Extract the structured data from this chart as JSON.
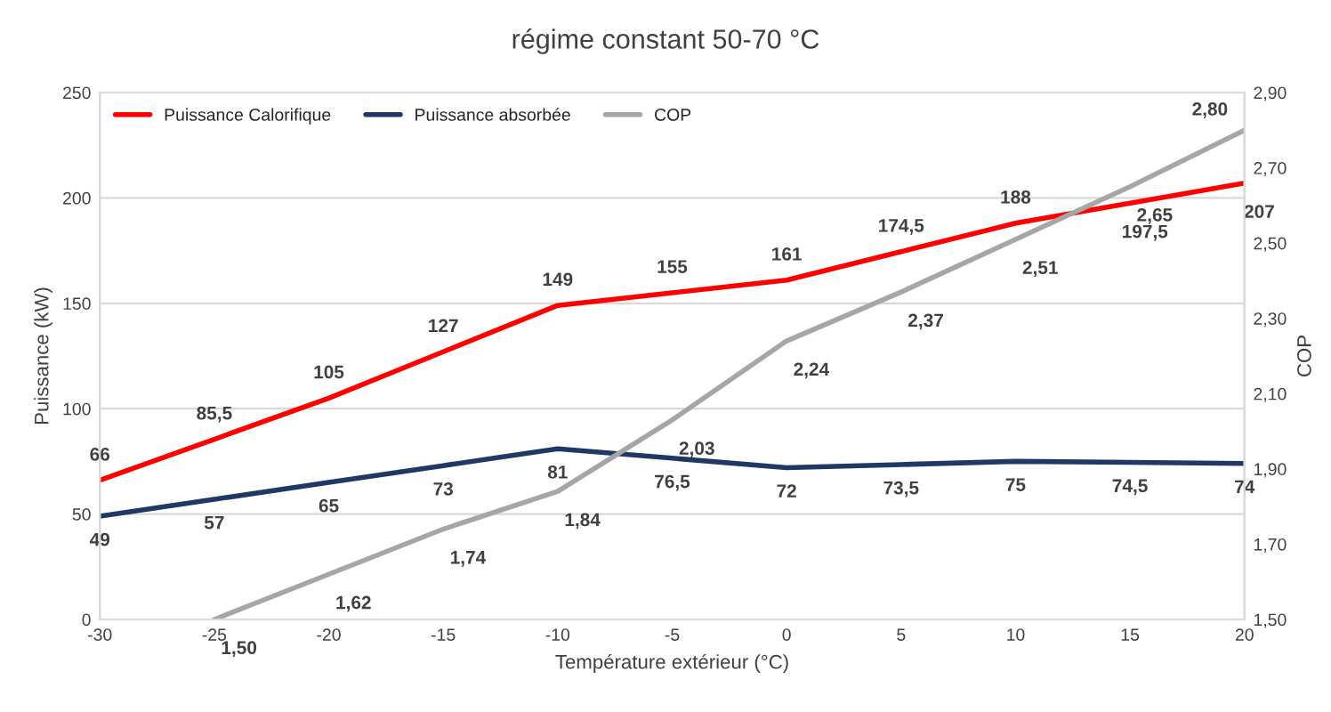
{
  "chart_data": {
    "type": "line",
    "title": "régime constant 50-70 °C",
    "xlabel": "Température extérieur (°C)",
    "ylabel": "Puissance (kW)",
    "y2label": "COP",
    "x": [
      -30,
      -25,
      -20,
      -15,
      -10,
      -5,
      0,
      5,
      10,
      15,
      20
    ],
    "series": [
      {
        "name": "Puissance Calorifique",
        "color": "#ff0000",
        "values": [
          66,
          85.5,
          105,
          127,
          149,
          155,
          161,
          174.5,
          188,
          197.5,
          207
        ],
        "value_labels": [
          "66",
          "85,5",
          "105",
          "127",
          "149",
          "155",
          "161",
          "174,5",
          "188",
          "197,5",
          "207"
        ]
      },
      {
        "name": "Puissance absorbée",
        "color": "#203864",
        "values": [
          49,
          57,
          65,
          73,
          81,
          76.5,
          72,
          73.5,
          75,
          74.5,
          74
        ],
        "value_labels": [
          "49",
          "57",
          "65",
          "73",
          "81",
          "76,5",
          "72",
          "73,5",
          "75",
          "74,5",
          "74"
        ]
      },
      {
        "name": "COP",
        "color": "#a6a6a6",
        "axis": "y2",
        "values": [
          null,
          1.5,
          1.62,
          1.74,
          1.84,
          2.03,
          2.24,
          2.37,
          2.51,
          2.65,
          2.8
        ],
        "value_labels": [
          null,
          "1,50",
          "1,62",
          "1,74",
          "1,84",
          "2,03",
          "2,24",
          "2,37",
          "2,51",
          "2,65",
          "2,80"
        ]
      }
    ],
    "xlim": [
      -30,
      20
    ],
    "xticks": [
      -30,
      -25,
      -20,
      -15,
      -10,
      -5,
      0,
      5,
      10,
      15,
      20
    ],
    "ylim": [
      0,
      250
    ],
    "yticks": [
      0,
      50,
      100,
      150,
      200,
      250
    ],
    "y2lim": [
      1.5,
      2.9
    ],
    "y2ticks": [
      {
        "value": 1.5,
        "label": "1,50"
      },
      {
        "value": 1.7,
        "label": "1,70"
      },
      {
        "value": 1.9,
        "label": "1,90"
      },
      {
        "value": 2.1,
        "label": "2,10"
      },
      {
        "value": 2.3,
        "label": "2,30"
      },
      {
        "value": 2.5,
        "label": "2,50"
      },
      {
        "value": 2.7,
        "label": "2,70"
      },
      {
        "value": 2.9,
        "label": "2,90"
      }
    ],
    "grid": "y",
    "legend": "top left",
    "marker": "none",
    "line_style": "solid"
  }
}
